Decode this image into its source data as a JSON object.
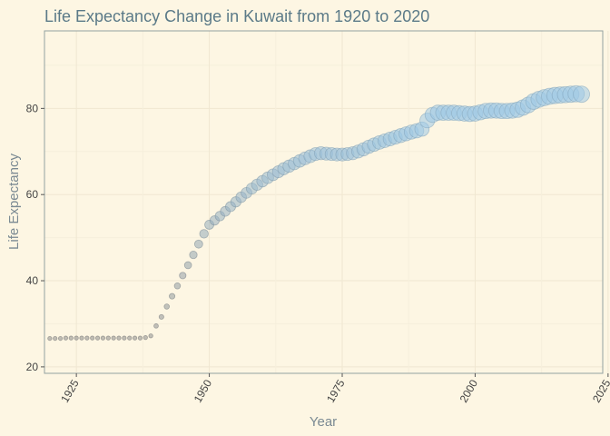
{
  "chart_data": {
    "type": "scatter",
    "title": "Life Expectancy Change in Kuwait from 1920 to 2020",
    "xlabel": "Year",
    "ylabel": "Life Expectancy",
    "xlim": [
      1919,
      2024
    ],
    "ylim": [
      18.5,
      98
    ],
    "x_ticks": [
      1925,
      1950,
      1975,
      2000,
      2025
    ],
    "y_ticks": [
      20,
      40,
      60,
      80
    ],
    "grid": true,
    "legend": "none",
    "colors": {
      "background": "#fdf6e3",
      "panel_border": "#93a1a1",
      "grid_major": "#f0e7d1",
      "grid_minor": "#f6efdc",
      "title": "#5b7a88",
      "axis_title": "#7b8a93",
      "tick_label": "#444444",
      "point_low": "#8e8e8e",
      "point_high": "#9ec9e6"
    },
    "points": [
      {
        "x": 1920,
        "y": 26.6
      },
      {
        "x": 1921,
        "y": 26.6
      },
      {
        "x": 1922,
        "y": 26.6
      },
      {
        "x": 1923,
        "y": 26.7
      },
      {
        "x": 1924,
        "y": 26.7
      },
      {
        "x": 1925,
        "y": 26.7
      },
      {
        "x": 1926,
        "y": 26.7
      },
      {
        "x": 1927,
        "y": 26.7
      },
      {
        "x": 1928,
        "y": 26.7
      },
      {
        "x": 1929,
        "y": 26.7
      },
      {
        "x": 1930,
        "y": 26.7
      },
      {
        "x": 1931,
        "y": 26.7
      },
      {
        "x": 1932,
        "y": 26.7
      },
      {
        "x": 1933,
        "y": 26.7
      },
      {
        "x": 1934,
        "y": 26.7
      },
      {
        "x": 1935,
        "y": 26.7
      },
      {
        "x": 1936,
        "y": 26.7
      },
      {
        "x": 1937,
        "y": 26.7
      },
      {
        "x": 1938,
        "y": 26.8
      },
      {
        "x": 1939,
        "y": 27.2
      },
      {
        "x": 1940,
        "y": 29.5
      },
      {
        "x": 1941,
        "y": 31.6
      },
      {
        "x": 1942,
        "y": 34.0
      },
      {
        "x": 1943,
        "y": 36.4
      },
      {
        "x": 1944,
        "y": 38.8
      },
      {
        "x": 1945,
        "y": 41.2
      },
      {
        "x": 1946,
        "y": 43.6
      },
      {
        "x": 1947,
        "y": 46.0
      },
      {
        "x": 1948,
        "y": 48.5
      },
      {
        "x": 1949,
        "y": 50.9
      },
      {
        "x": 1950,
        "y": 53.0
      },
      {
        "x": 1951,
        "y": 54.0
      },
      {
        "x": 1952,
        "y": 55.0
      },
      {
        "x": 1953,
        "y": 56.1
      },
      {
        "x": 1954,
        "y": 57.2
      },
      {
        "x": 1955,
        "y": 58.3
      },
      {
        "x": 1956,
        "y": 59.4
      },
      {
        "x": 1957,
        "y": 60.4
      },
      {
        "x": 1958,
        "y": 61.4
      },
      {
        "x": 1959,
        "y": 62.3
      },
      {
        "x": 1960,
        "y": 63.1
      },
      {
        "x": 1961,
        "y": 63.9
      },
      {
        "x": 1962,
        "y": 64.6
      },
      {
        "x": 1963,
        "y": 65.3
      },
      {
        "x": 1964,
        "y": 66.0
      },
      {
        "x": 1965,
        "y": 66.6
      },
      {
        "x": 1966,
        "y": 67.2
      },
      {
        "x": 1967,
        "y": 67.8
      },
      {
        "x": 1968,
        "y": 68.4
      },
      {
        "x": 1969,
        "y": 68.9
      },
      {
        "x": 1970,
        "y": 69.4
      },
      {
        "x": 1971,
        "y": 69.6
      },
      {
        "x": 1972,
        "y": 69.5
      },
      {
        "x": 1973,
        "y": 69.4
      },
      {
        "x": 1974,
        "y": 69.3
      },
      {
        "x": 1975,
        "y": 69.3
      },
      {
        "x": 1976,
        "y": 69.4
      },
      {
        "x": 1977,
        "y": 69.6
      },
      {
        "x": 1978,
        "y": 70.0
      },
      {
        "x": 1979,
        "y": 70.5
      },
      {
        "x": 1980,
        "y": 71.1
      },
      {
        "x": 1981,
        "y": 71.6
      },
      {
        "x": 1982,
        "y": 72.1
      },
      {
        "x": 1983,
        "y": 72.5
      },
      {
        "x": 1984,
        "y": 72.9
      },
      {
        "x": 1985,
        "y": 73.3
      },
      {
        "x": 1986,
        "y": 73.7
      },
      {
        "x": 1987,
        "y": 74.1
      },
      {
        "x": 1988,
        "y": 74.5
      },
      {
        "x": 1989,
        "y": 74.8
      },
      {
        "x": 1990,
        "y": 75.2
      },
      {
        "x": 1991,
        "y": 77.2
      },
      {
        "x": 1992,
        "y": 78.5
      },
      {
        "x": 1993,
        "y": 79.0
      },
      {
        "x": 1994,
        "y": 79.0
      },
      {
        "x": 1995,
        "y": 79.0
      },
      {
        "x": 1996,
        "y": 79.0
      },
      {
        "x": 1997,
        "y": 78.9
      },
      {
        "x": 1998,
        "y": 78.8
      },
      {
        "x": 1999,
        "y": 78.7
      },
      {
        "x": 2000,
        "y": 78.8
      },
      {
        "x": 2001,
        "y": 79.1
      },
      {
        "x": 2002,
        "y": 79.4
      },
      {
        "x": 2003,
        "y": 79.5
      },
      {
        "x": 2004,
        "y": 79.5
      },
      {
        "x": 2005,
        "y": 79.4
      },
      {
        "x": 2006,
        "y": 79.4
      },
      {
        "x": 2007,
        "y": 79.5
      },
      {
        "x": 2008,
        "y": 79.7
      },
      {
        "x": 2009,
        "y": 80.2
      },
      {
        "x": 2010,
        "y": 80.8
      },
      {
        "x": 2011,
        "y": 81.6
      },
      {
        "x": 2012,
        "y": 82.1
      },
      {
        "x": 2013,
        "y": 82.5
      },
      {
        "x": 2014,
        "y": 82.8
      },
      {
        "x": 2015,
        "y": 83.0
      },
      {
        "x": 2016,
        "y": 83.1
      },
      {
        "x": 2017,
        "y": 83.2
      },
      {
        "x": 2018,
        "y": 83.3
      },
      {
        "x": 2019,
        "y": 83.4
      },
      {
        "x": 2020,
        "y": 83.3
      }
    ]
  }
}
